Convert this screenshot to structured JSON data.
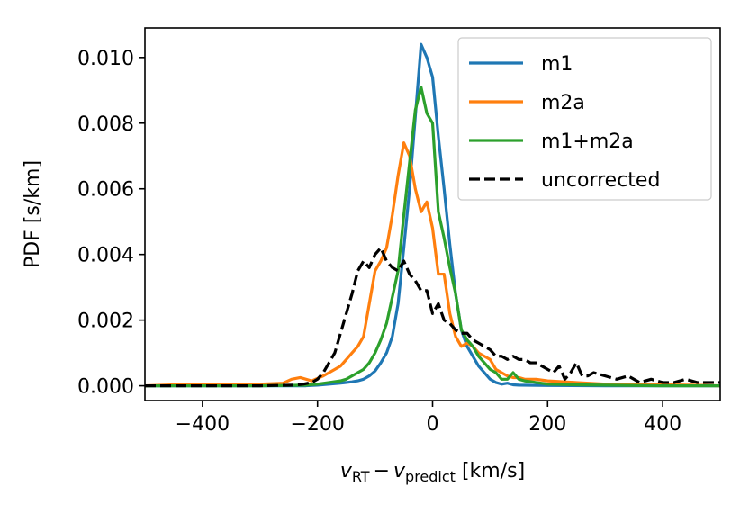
{
  "chart_data": {
    "type": "line",
    "title": "",
    "xlabel": {
      "main": "v",
      "sub1": "RT",
      "minus": "−",
      "main2": "v",
      "sub2": "predict",
      "unit": " [km/s]"
    },
    "ylabel": "PDF [s/km]",
    "xlim": [
      -500,
      500
    ],
    "ylim": [
      -0.00045,
      0.0109
    ],
    "xticks": [
      -400,
      -200,
      0,
      200,
      400
    ],
    "xtick_labels": [
      "−400",
      "−200",
      "0",
      "200",
      "400"
    ],
    "yticks": [
      0.0,
      0.002,
      0.004,
      0.006,
      0.008,
      0.01
    ],
    "ytick_labels": [
      "0.000",
      "0.002",
      "0.004",
      "0.006",
      "0.008",
      "0.010"
    ],
    "legend_position": "top-right",
    "series": [
      {
        "name": "m1",
        "color": "#1f77b4",
        "dash": "solid",
        "x": [
          -500,
          -400,
          -300,
          -220,
          -200,
          -180,
          -160,
          -140,
          -130,
          -120,
          -110,
          -100,
          -90,
          -80,
          -70,
          -60,
          -50,
          -40,
          -30,
          -20,
          -10,
          0,
          10,
          20,
          30,
          40,
          50,
          60,
          70,
          80,
          90,
          100,
          110,
          120,
          130,
          140,
          150,
          200,
          300,
          400,
          500
        ],
        "y": [
          0.0,
          0.0,
          0.0,
          0.0,
          2e-05,
          5e-05,
          8e-05,
          0.00012,
          0.00015,
          0.0002,
          0.0003,
          0.00045,
          0.0007,
          0.001,
          0.0015,
          0.0025,
          0.0042,
          0.006,
          0.0082,
          0.0104,
          0.01,
          0.0094,
          0.0076,
          0.006,
          0.0043,
          0.0028,
          0.0017,
          0.0012,
          0.0009,
          0.0006,
          0.0004,
          0.0002,
          0.0001,
          5e-05,
          8e-05,
          3e-05,
          2e-05,
          1e-05,
          0.0,
          0.0,
          0.0
        ]
      },
      {
        "name": "m2a",
        "color": "#ff7f0e",
        "dash": "solid",
        "x": [
          -500,
          -450,
          -400,
          -350,
          -300,
          -260,
          -245,
          -230,
          -210,
          -190,
          -180,
          -170,
          -160,
          -150,
          -140,
          -130,
          -120,
          -110,
          -100,
          -90,
          -80,
          -70,
          -60,
          -50,
          -40,
          -30,
          -20,
          -10,
          0,
          10,
          20,
          30,
          40,
          50,
          60,
          70,
          80,
          90,
          100,
          110,
          120,
          130,
          140,
          150,
          160,
          180,
          200,
          250,
          300,
          350,
          400,
          450,
          500
        ],
        "y": [
          0.0,
          3e-05,
          5e-05,
          4e-05,
          5e-05,
          8e-05,
          0.0002,
          0.00025,
          0.00015,
          0.0003,
          0.0004,
          0.0005,
          0.0006,
          0.0008,
          0.001,
          0.0012,
          0.0015,
          0.0025,
          0.0035,
          0.0038,
          0.0042,
          0.0052,
          0.0064,
          0.0074,
          0.007,
          0.006,
          0.0053,
          0.0056,
          0.0048,
          0.0034,
          0.0034,
          0.0022,
          0.0015,
          0.0012,
          0.0013,
          0.0012,
          0.001,
          0.0009,
          0.0008,
          0.0005,
          0.0004,
          0.0003,
          0.00025,
          0.00025,
          0.0002,
          0.0002,
          0.00015,
          0.0001,
          5e-05,
          4e-05,
          3e-05,
          2e-05,
          0.0
        ]
      },
      {
        "name": "m1+m2a",
        "color": "#2ca02c",
        "dash": "solid",
        "x": [
          -500,
          -400,
          -300,
          -220,
          -200,
          -180,
          -160,
          -150,
          -140,
          -130,
          -120,
          -110,
          -100,
          -90,
          -80,
          -70,
          -60,
          -50,
          -40,
          -30,
          -20,
          -10,
          0,
          10,
          20,
          30,
          40,
          50,
          60,
          70,
          80,
          90,
          100,
          110,
          120,
          130,
          140,
          150,
          160,
          180,
          200,
          250,
          300,
          400,
          500
        ],
        "y": [
          0.0,
          0.0,
          0.0,
          2e-05,
          5e-05,
          0.0001,
          0.00015,
          0.0002,
          0.0003,
          0.0004,
          0.0005,
          0.0007,
          0.001,
          0.0014,
          0.0019,
          0.0027,
          0.0035,
          0.0052,
          0.0068,
          0.0084,
          0.0091,
          0.0083,
          0.008,
          0.0053,
          0.0045,
          0.0036,
          0.0028,
          0.0017,
          0.0014,
          0.0012,
          0.0009,
          0.0007,
          0.0005,
          0.0004,
          0.0002,
          0.0002,
          0.0004,
          0.0002,
          0.00015,
          0.0001,
          5e-05,
          3e-05,
          2e-05,
          0.0,
          0.0
        ]
      },
      {
        "name": "uncorrected",
        "color": "#000000",
        "dash": "dashed",
        "x": [
          -500,
          -400,
          -300,
          -240,
          -225,
          -210,
          -200,
          -190,
          -180,
          -170,
          -160,
          -150,
          -140,
          -130,
          -120,
          -110,
          -100,
          -90,
          -80,
          -70,
          -60,
          -50,
          -40,
          -30,
          -20,
          -10,
          0,
          10,
          20,
          30,
          40,
          50,
          60,
          70,
          80,
          90,
          100,
          110,
          120,
          130,
          140,
          150,
          160,
          170,
          180,
          190,
          200,
          210,
          220,
          230,
          240,
          250,
          260,
          270,
          280,
          300,
          320,
          340,
          360,
          380,
          400,
          420,
          440,
          460,
          480,
          500
        ],
        "y": [
          0.0,
          0.0,
          0.0,
          2e-05,
          5e-05,
          0.0001,
          0.0002,
          0.0004,
          0.0007,
          0.001,
          0.0016,
          0.0022,
          0.0028,
          0.0035,
          0.0038,
          0.0036,
          0.004,
          0.0042,
          0.0038,
          0.0036,
          0.0035,
          0.0038,
          0.0034,
          0.0032,
          0.0029,
          0.0029,
          0.0022,
          0.0025,
          0.002,
          0.0019,
          0.0017,
          0.0016,
          0.0016,
          0.0014,
          0.0013,
          0.0012,
          0.0011,
          0.0009,
          0.0009,
          0.0008,
          0.0009,
          0.0008,
          0.0008,
          0.0007,
          0.0007,
          0.0006,
          0.0005,
          0.0004,
          0.0006,
          0.0002,
          0.0004,
          0.0007,
          0.0003,
          0.0003,
          0.0004,
          0.0003,
          0.0002,
          0.0003,
          0.0001,
          0.0002,
          0.0001,
          0.0001,
          0.0002,
          0.0001,
          0.0001,
          0.0001
        ]
      }
    ]
  }
}
